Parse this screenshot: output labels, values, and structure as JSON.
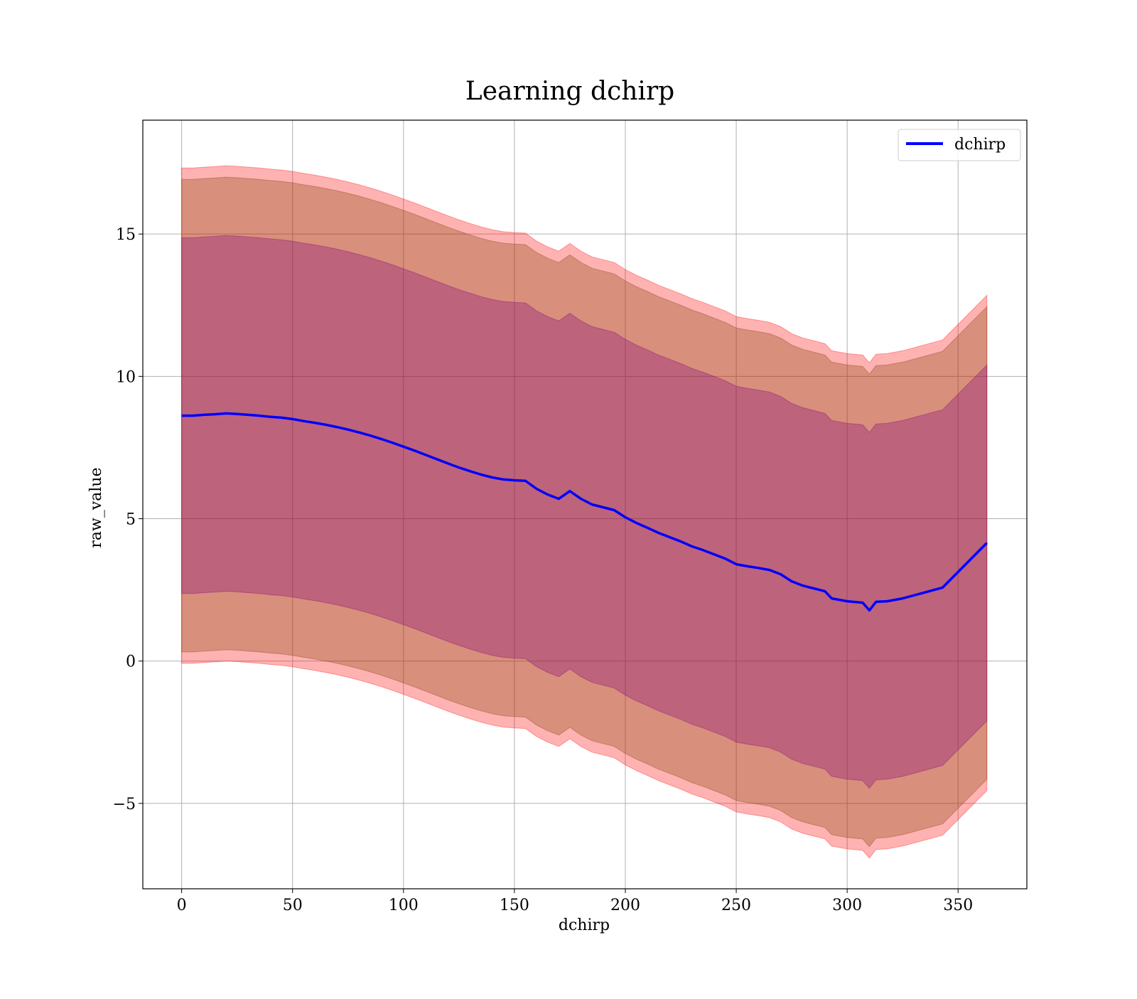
{
  "chart_data": {
    "type": "line",
    "title": "Learning dchirp",
    "xlabel": "dchirp",
    "ylabel": "raw_value",
    "xlim": [
      -17.5,
      381
    ],
    "ylim": [
      -8,
      19
    ],
    "xticks": [
      0,
      50,
      100,
      150,
      200,
      250,
      300,
      350
    ],
    "yticks": [
      -5,
      0,
      5,
      10,
      15
    ],
    "ytick_labels": [
      "−5",
      "0",
      "5",
      "10",
      "15"
    ],
    "grid": true,
    "legend_position": "top-right",
    "colors": {
      "line": "#0000ff",
      "outer_band": "#ff0000",
      "inner_band": "#7f3f00",
      "innermost_band": "#7f007f",
      "grid": "#b0b0b0"
    },
    "series": [
      {
        "name": "dchirp",
        "x": [
          0,
          5,
          10,
          15,
          20,
          25,
          30,
          35,
          40,
          45,
          50,
          55,
          60,
          65,
          70,
          75,
          80,
          85,
          90,
          95,
          100,
          105,
          110,
          115,
          120,
          125,
          130,
          135,
          140,
          145,
          150,
          155,
          160,
          165,
          170,
          175,
          180,
          185,
          190,
          195,
          200,
          205,
          210,
          215,
          220,
          225,
          230,
          235,
          240,
          245,
          250,
          255,
          260,
          265,
          270,
          275,
          280,
          285,
          290,
          293,
          300,
          307,
          310,
          313,
          318,
          325,
          343,
          363
        ],
        "y": [
          8.62,
          8.62,
          8.65,
          8.67,
          8.7,
          8.68,
          8.65,
          8.62,
          8.58,
          8.55,
          8.5,
          8.43,
          8.37,
          8.3,
          8.22,
          8.13,
          8.03,
          7.92,
          7.8,
          7.67,
          7.53,
          7.39,
          7.24,
          7.09,
          6.94,
          6.8,
          6.67,
          6.55,
          6.45,
          6.38,
          6.35,
          6.33,
          6.05,
          5.85,
          5.7,
          5.97,
          5.7,
          5.5,
          5.4,
          5.3,
          5.05,
          4.85,
          4.68,
          4.5,
          4.35,
          4.2,
          4.03,
          3.9,
          3.75,
          3.6,
          3.4,
          3.33,
          3.27,
          3.2,
          3.05,
          2.8,
          2.65,
          2.55,
          2.45,
          2.2,
          2.1,
          2.05,
          1.78,
          2.08,
          2.1,
          2.2,
          2.58,
          4.15
        ]
      }
    ],
    "bands": [
      {
        "offset_lower": -8.7,
        "offset_upper": 8.7
      },
      {
        "offset_lower": -8.3,
        "offset_upper": 8.3
      },
      {
        "offset_lower": -6.25,
        "offset_upper": 6.25
      }
    ],
    "legend": [
      "dchirp"
    ]
  }
}
